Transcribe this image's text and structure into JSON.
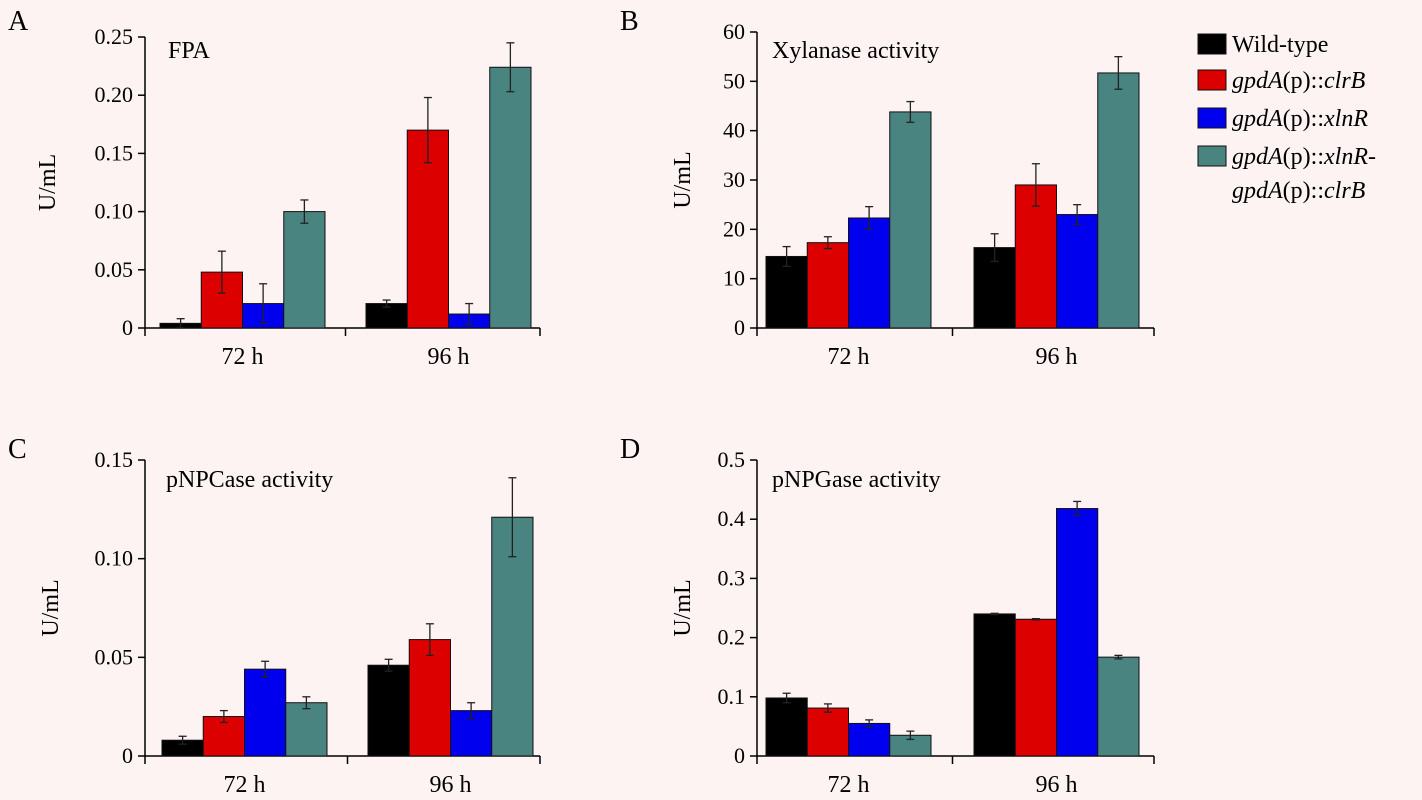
{
  "legend": [
    {
      "key": "wt",
      "parts": [
        {
          "t": "Wild-type",
          "i": false
        }
      ]
    },
    {
      "key": "clrB",
      "parts": [
        {
          "t": "gpdA",
          "i": true
        },
        {
          "t": "(p)::",
          "i": false
        },
        {
          "t": "clrB",
          "i": true
        }
      ]
    },
    {
      "key": "xlnR",
      "parts": [
        {
          "t": "gpdA",
          "i": true
        },
        {
          "t": "(p)::",
          "i": false
        },
        {
          "t": "xlnR",
          "i": true
        }
      ]
    },
    {
      "key": "both",
      "parts": [
        {
          "t": "gpdA",
          "i": true
        },
        {
          "t": "(p)::",
          "i": false
        },
        {
          "t": "xlnR",
          "i": true
        },
        {
          "t": "-",
          "i": false
        }
      ],
      "parts2": [
        {
          "t": "gpdA",
          "i": true
        },
        {
          "t": "(p)::",
          "i": false
        },
        {
          "t": "clrB",
          "i": true
        }
      ]
    }
  ],
  "colors": {
    "wt": "#000000",
    "clrB": "#dd0000",
    "xlnR": "#0000ee",
    "both": "#4a8480"
  },
  "chart_data": [
    {
      "type": "bar",
      "panel": "A",
      "title": "FPA",
      "ylabel": "U/mL",
      "categories": [
        "72 h",
        "96 h"
      ],
      "ylim": [
        0,
        0.25
      ],
      "yticks": [
        0,
        0.05,
        0.1,
        0.15,
        0.2,
        0.25
      ],
      "ytick_labels": [
        "0",
        "0.05",
        "0.10",
        "0.15",
        "0.20",
        "0.25"
      ],
      "series": [
        {
          "key": "wt",
          "values": [
            0.004,
            0.021
          ],
          "errors": [
            0.004,
            0.003
          ]
        },
        {
          "key": "clrB",
          "values": [
            0.048,
            0.17
          ],
          "errors": [
            0.018,
            0.028
          ]
        },
        {
          "key": "xlnR",
          "values": [
            0.021,
            0.012
          ],
          "errors": [
            0.017,
            0.009
          ]
        },
        {
          "key": "both",
          "values": [
            0.1,
            0.224
          ],
          "errors": [
            0.01,
            0.021
          ]
        }
      ]
    },
    {
      "type": "bar",
      "panel": "B",
      "title": "Xylanase activity",
      "ylabel": "U/mL",
      "categories": [
        "72 h",
        "96 h"
      ],
      "ylim": [
        0,
        60
      ],
      "yticks": [
        0,
        10,
        20,
        30,
        40,
        50,
        60
      ],
      "ytick_labels": [
        "0",
        "10",
        "20",
        "30",
        "40",
        "50",
        "60"
      ],
      "series": [
        {
          "key": "wt",
          "values": [
            14.5,
            16.3
          ],
          "errors": [
            2.0,
            2.8
          ]
        },
        {
          "key": "clrB",
          "values": [
            17.3,
            29.0
          ],
          "errors": [
            1.2,
            4.3
          ]
        },
        {
          "key": "xlnR",
          "values": [
            22.3,
            23.0
          ],
          "errors": [
            2.3,
            2.0
          ]
        },
        {
          "key": "both",
          "values": [
            43.8,
            51.7
          ],
          "errors": [
            2.1,
            3.3
          ]
        }
      ]
    },
    {
      "type": "bar",
      "panel": "C",
      "title": "pNPCase activity",
      "ylabel": "U/mL",
      "categories": [
        "72 h",
        "96 h"
      ],
      "ylim": [
        0,
        0.15
      ],
      "yticks": [
        0,
        0.05,
        0.1,
        0.15
      ],
      "ytick_labels": [
        "0",
        "0.05",
        "0.10",
        "0.15"
      ],
      "series": [
        {
          "key": "wt",
          "values": [
            0.008,
            0.046
          ],
          "errors": [
            0.002,
            0.003
          ]
        },
        {
          "key": "clrB",
          "values": [
            0.02,
            0.059
          ],
          "errors": [
            0.003,
            0.008
          ]
        },
        {
          "key": "xlnR",
          "values": [
            0.044,
            0.023
          ],
          "errors": [
            0.004,
            0.004
          ]
        },
        {
          "key": "both",
          "values": [
            0.027,
            0.121
          ],
          "errors": [
            0.003,
            0.02
          ]
        }
      ]
    },
    {
      "type": "bar",
      "panel": "D",
      "title": "pNPGase activity",
      "ylabel": "U/mL",
      "categories": [
        "72 h",
        "96 h"
      ],
      "ylim": [
        0,
        0.5
      ],
      "yticks": [
        0,
        0.1,
        0.2,
        0.3,
        0.4,
        0.5
      ],
      "ytick_labels": [
        "0",
        "0.1",
        "0.2",
        "0.3",
        "0.4",
        "0.5"
      ],
      "series": [
        {
          "key": "wt",
          "values": [
            0.098,
            0.24
          ],
          "errors": [
            0.008,
            0.001
          ]
        },
        {
          "key": "clrB",
          "values": [
            0.081,
            0.231
          ],
          "errors": [
            0.007,
            0.001
          ]
        },
        {
          "key": "xlnR",
          "values": [
            0.055,
            0.418
          ],
          "errors": [
            0.006,
            0.012
          ]
        },
        {
          "key": "both",
          "values": [
            0.035,
            0.167
          ],
          "errors": [
            0.007,
            0.003
          ]
        }
      ]
    }
  ]
}
